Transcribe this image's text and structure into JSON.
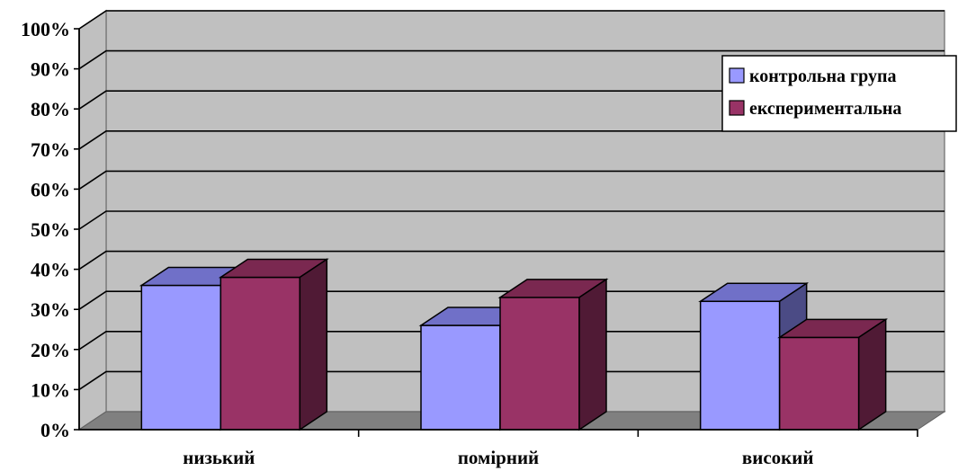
{
  "chart_data": {
    "type": "bar",
    "style": "3d-clustered-column",
    "categories": [
      "низький",
      "помірний",
      "високий"
    ],
    "series": [
      {
        "name": "контрольна група",
        "values": [
          36,
          26,
          32
        ],
        "color": "#9999ff",
        "top_color": "#7070c8",
        "side_color": "#4b4b85"
      },
      {
        "name": "експериментальна",
        "values": [
          38,
          33,
          23
        ],
        "color": "#993366",
        "top_color": "#7a2850",
        "side_color": "#501a35"
      }
    ],
    "y_ticks": [
      "0%",
      "10%",
      "20%",
      "30%",
      "40%",
      "50%",
      "60%",
      "70%",
      "80%",
      "90%",
      "100%"
    ],
    "ylim": [
      0,
      100
    ],
    "grid": true,
    "legend_position": "top-right",
    "wall_color": "#c0c0c0",
    "floor_color": "#808080"
  }
}
